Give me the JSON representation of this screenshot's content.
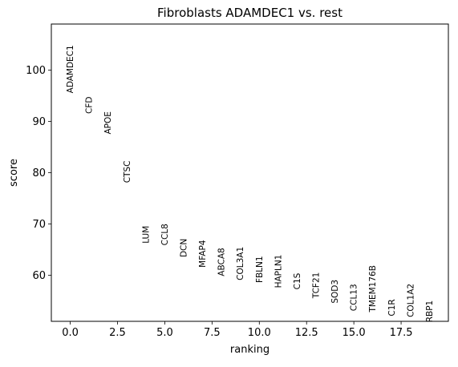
{
  "chart_data": {
    "type": "scatter",
    "title": "Fibroblasts ADAMDEC1 vs. rest",
    "xlabel": "ranking",
    "ylabel": "score",
    "xlim": [
      -1,
      20
    ],
    "ylim": [
      51,
      109
    ],
    "x_ticks": [
      0.0,
      2.5,
      5.0,
      7.5,
      10.0,
      12.5,
      15.0,
      17.5
    ],
    "x_tick_labels": [
      "0.0",
      "2.5",
      "5.0",
      "7.5",
      "10.0",
      "12.5",
      "15.0",
      "17.5"
    ],
    "y_ticks": [
      60,
      70,
      80,
      90,
      100
    ],
    "y_tick_labels": [
      "60",
      "70",
      "80",
      "90",
      "100"
    ],
    "grid": false,
    "marker": "rotated gene name text",
    "points": [
      {
        "x": 0,
        "y": 95.5,
        "label": "ADAMDEC1"
      },
      {
        "x": 1,
        "y": 91.5,
        "label": "CFD"
      },
      {
        "x": 2,
        "y": 87.5,
        "label": "APOE"
      },
      {
        "x": 3,
        "y": 78.0,
        "label": "CTSC"
      },
      {
        "x": 4,
        "y": 66.2,
        "label": "LUM"
      },
      {
        "x": 5,
        "y": 65.8,
        "label": "CCL8"
      },
      {
        "x": 6,
        "y": 63.5,
        "label": "DCN"
      },
      {
        "x": 7,
        "y": 61.5,
        "label": "MFAP4"
      },
      {
        "x": 8,
        "y": 59.8,
        "label": "ABCA8"
      },
      {
        "x": 9,
        "y": 59.0,
        "label": "COL3A1"
      },
      {
        "x": 10,
        "y": 58.5,
        "label": "FBLN1"
      },
      {
        "x": 11,
        "y": 57.5,
        "label": "HAPLN1"
      },
      {
        "x": 12,
        "y": 57.2,
        "label": "C1S"
      },
      {
        "x": 13,
        "y": 55.5,
        "label": "TCF21"
      },
      {
        "x": 14,
        "y": 54.5,
        "label": "SOD3"
      },
      {
        "x": 15,
        "y": 53.0,
        "label": "CCL13"
      },
      {
        "x": 16,
        "y": 52.8,
        "label": "TMEM176B"
      },
      {
        "x": 17,
        "y": 52.0,
        "label": "C1R"
      },
      {
        "x": 18,
        "y": 51.8,
        "label": "COL1A2"
      },
      {
        "x": 19,
        "y": 50.8,
        "label": "RBP1"
      }
    ]
  }
}
